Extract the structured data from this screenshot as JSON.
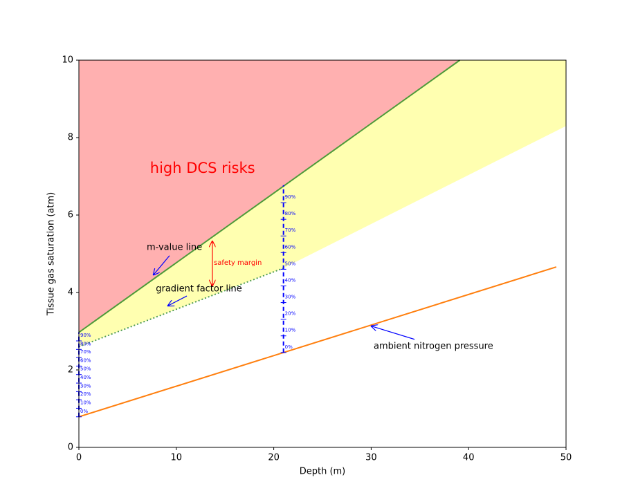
{
  "chart_data": {
    "type": "line",
    "xlabel": "Depth (m)",
    "ylabel": "Tissue gas saturation (atm)",
    "xlim": [
      0,
      50
    ],
    "ylim": [
      0,
      10
    ],
    "xticks": [
      0,
      10,
      20,
      30,
      40,
      50
    ],
    "yticks": [
      0,
      2,
      4,
      6,
      8,
      10
    ],
    "fills": [
      {
        "color": "#ffb0b0",
        "x": [
          0,
          39.1,
          0
        ],
        "y": [
          2.97,
          10,
          10
        ]
      },
      {
        "color": "#ffffb0",
        "x": [
          0,
          39.1,
          50,
          50,
          21,
          0
        ],
        "y": [
          2.97,
          10,
          10,
          8.3,
          4.63,
          2.6
        ]
      }
    ],
    "series": [
      {
        "color": "#4e9a3a",
        "style": "solid",
        "x": [
          0,
          39.1
        ],
        "values": [
          2.97,
          10
        ]
      },
      {
        "color": "#4c9a55",
        "style": "dotted",
        "x": [
          0,
          21
        ],
        "values": [
          2.6,
          4.63
        ]
      },
      {
        "color": "#ff7f0e",
        "style": "solid",
        "x": [
          0,
          49
        ],
        "values": [
          0.79,
          4.66
        ]
      }
    ],
    "scales": [
      {
        "color": "#0000ff",
        "x": 21,
        "range": [
          2.45,
          6.77
        ],
        "ticks": [
          {
            "value": 2.45,
            "label": "0%"
          },
          {
            "value": 2.88,
            "label": "10%"
          },
          {
            "value": 3.31,
            "label": "20%"
          },
          {
            "value": 3.74,
            "label": "30%"
          },
          {
            "value": 4.17,
            "label": "40%"
          },
          {
            "value": 4.6,
            "label": "50%"
          },
          {
            "value": 5.03,
            "label": "60%"
          },
          {
            "value": 5.46,
            "label": "70%"
          },
          {
            "value": 5.89,
            "label": "80%"
          },
          {
            "value": 6.32,
            "label": "90%"
          }
        ]
      },
      {
        "color": "#0000ff",
        "x": 0,
        "range": [
          0.79,
          2.97
        ],
        "ticks": [
          {
            "value": 0.79,
            "label": "0%"
          },
          {
            "value": 1.01,
            "label": "10%"
          },
          {
            "value": 1.23,
            "label": "20%"
          },
          {
            "value": 1.44,
            "label": "30%"
          },
          {
            "value": 1.66,
            "label": "40%"
          },
          {
            "value": 1.88,
            "label": "50%"
          },
          {
            "value": 2.1,
            "label": "60%"
          },
          {
            "value": 2.32,
            "label": "70%"
          },
          {
            "value": 2.53,
            "label": "80%"
          },
          {
            "value": 2.75,
            "label": "90%"
          }
        ]
      }
    ],
    "annotations": [
      {
        "text": "high DCS risks",
        "x": 7.3,
        "y": 7.2,
        "color": "#ff0000",
        "style": "large"
      },
      {
        "text": "m-value line",
        "x": 6.96,
        "y": 5.16,
        "color": "#000000",
        "style": "normal",
        "arrow_from": [
          9.3,
          4.95
        ],
        "arrow_to": [
          7.67,
          4.46
        ],
        "arrow_color": "#0000ff"
      },
      {
        "text": "gradient factor line",
        "x": 7.9,
        "y": 4.09,
        "color": "#000000",
        "style": "normal",
        "arrow_from": [
          11.08,
          3.91
        ],
        "arrow_to": [
          9.16,
          3.66
        ],
        "arrow_color": "#0000ff"
      },
      {
        "text": "safety margin",
        "x": 13.85,
        "y": 4.77,
        "color": "#ff0000",
        "style": "small",
        "arrow_from": [
          13.7,
          4.18
        ],
        "arrow_to": [
          13.7,
          5.32
        ],
        "arrow_color": "#ff0000",
        "double": true
      },
      {
        "text": "ambient nitrogen pressure",
        "x": 30.26,
        "y": 2.61,
        "color": "#000000",
        "style": "normal",
        "arrow_from": [
          34.45,
          2.79
        ],
        "arrow_to": [
          30.04,
          3.13
        ],
        "arrow_color": "#0000ff"
      }
    ]
  }
}
